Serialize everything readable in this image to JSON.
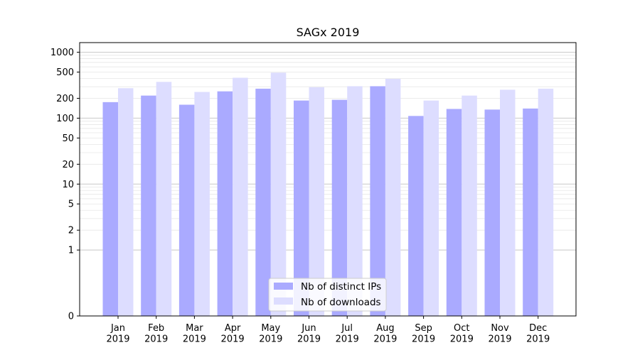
{
  "chart_data": {
    "type": "bar",
    "title": "SAGx 2019",
    "xlabel": "",
    "ylabel": "",
    "yscale": "symlog",
    "ylim": [
      0,
      1400
    ],
    "yticks": [
      0,
      1,
      2,
      5,
      10,
      20,
      50,
      100,
      200,
      500,
      1000
    ],
    "ytick_labels": [
      "0",
      "1",
      "2",
      "5",
      "10",
      "20",
      "50",
      "100",
      "200",
      "500",
      "1000"
    ],
    "categories": [
      "Jan\n2019",
      "Feb\n2019",
      "Mar\n2019",
      "Apr\n2019",
      "May\n2019",
      "Jun\n2019",
      "Jul\n2019",
      "Aug\n2019",
      "Sep\n2019",
      "Oct\n2019",
      "Nov\n2019",
      "Dec\n2019"
    ],
    "category_lines": [
      [
        "Jan",
        "2019"
      ],
      [
        "Feb",
        "2019"
      ],
      [
        "Mar",
        "2019"
      ],
      [
        "Apr",
        "2019"
      ],
      [
        "May",
        "2019"
      ],
      [
        "Jun",
        "2019"
      ],
      [
        "Jul",
        "2019"
      ],
      [
        "Aug",
        "2019"
      ],
      [
        "Sep",
        "2019"
      ],
      [
        "Oct",
        "2019"
      ],
      [
        "Nov",
        "2019"
      ],
      [
        "Dec",
        "2019"
      ]
    ],
    "series": [
      {
        "name": "Nb of distinct IPs",
        "color": "#aaaaff",
        "values": [
          175,
          220,
          160,
          255,
          280,
          185,
          190,
          305,
          108,
          138,
          135,
          140
        ]
      },
      {
        "name": "Nb of downloads",
        "color": "#ddddff",
        "values": [
          285,
          355,
          250,
          410,
          490,
          295,
          305,
          395,
          185,
          220,
          270,
          280
        ]
      }
    ],
    "grid": true,
    "legend_position": "lower-center"
  }
}
